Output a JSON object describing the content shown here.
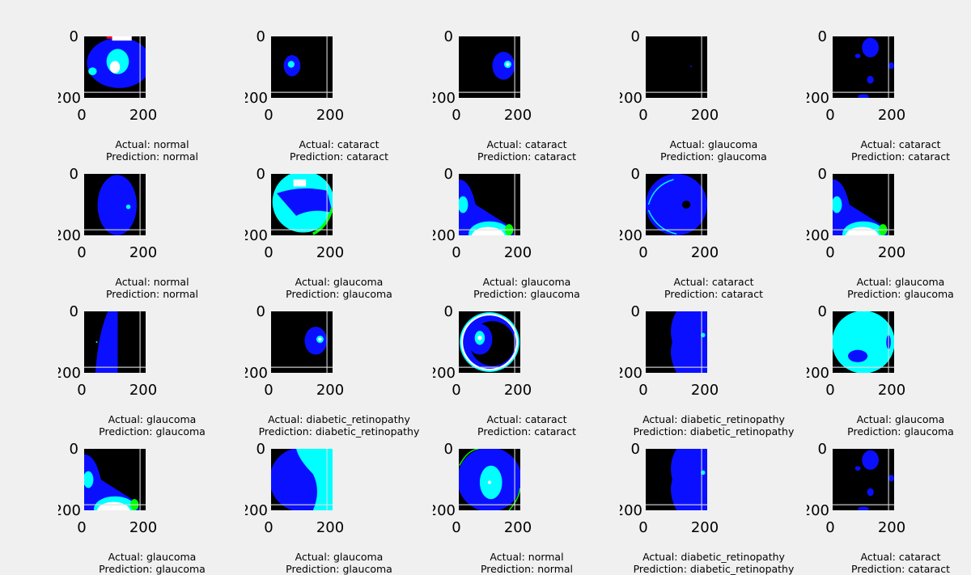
{
  "chart_data": {
    "type": "image-grid",
    "rows": 4,
    "cols": 5,
    "axis": {
      "xticks": [
        "0",
        "200"
      ],
      "yticks": [
        "0",
        "200"
      ]
    },
    "caption_prefixes": {
      "actual": "Actual:",
      "prediction": "Prediction:"
    },
    "panels": [
      {
        "actual": "Actual: normal",
        "prediction": "Prediction: normal",
        "label": "normal",
        "style": "bright-top"
      },
      {
        "actual": "Actual: cataract",
        "prediction": "Prediction: cataract",
        "label": "cataract",
        "style": "small-blob"
      },
      {
        "actual": "Actual: cataract",
        "prediction": "Prediction: cataract",
        "label": "cataract",
        "style": "sparse-right"
      },
      {
        "actual": "Actual: glaucoma",
        "prediction": "Prediction: glaucoma",
        "label": "glaucoma",
        "style": "dark"
      },
      {
        "actual": "Actual: cataract",
        "prediction": "Prediction: cataract",
        "label": "cataract",
        "style": "sparse-dots"
      },
      {
        "actual": "Actual: normal",
        "prediction": "Prediction: normal",
        "label": "normal",
        "style": "blue-oval"
      },
      {
        "actual": "Actual: glaucoma",
        "prediction": "Prediction: glaucoma",
        "label": "glaucoma",
        "style": "cyan-disc"
      },
      {
        "actual": "Actual: glaucoma",
        "prediction": "Prediction: glaucoma",
        "label": "glaucoma",
        "style": "white-bottom"
      },
      {
        "actual": "Actual: cataract",
        "prediction": "Prediction: cataract",
        "label": "cataract",
        "style": "blue-fundus"
      },
      {
        "actual": "Actual: glaucoma",
        "prediction": "Prediction: glaucoma",
        "label": "glaucoma",
        "style": "white-bottom"
      },
      {
        "actual": "Actual: glaucoma",
        "prediction": "Prediction: glaucoma",
        "label": "glaucoma",
        "style": "thin-crescent"
      },
      {
        "actual": "Actual: diabetic_retinopathy",
        "prediction": "Prediction: diabetic_retinopathy",
        "label": "diabetic_retinopathy",
        "style": "sparse-right"
      },
      {
        "actual": "Actual: cataract",
        "prediction": "Prediction: cataract",
        "label": "cataract",
        "style": "ring"
      },
      {
        "actual": "Actual: diabetic_retinopathy",
        "prediction": "Prediction: diabetic_retinopathy",
        "label": "diabetic_retinopathy",
        "style": "half-right"
      },
      {
        "actual": "Actual: glaucoma",
        "prediction": "Prediction: glaucoma",
        "label": "glaucoma",
        "style": "cyan-full"
      },
      {
        "actual": "Actual: glaucoma",
        "prediction": "Prediction: glaucoma",
        "label": "glaucoma",
        "style": "white-bottom"
      },
      {
        "actual": "Actual: glaucoma",
        "prediction": "Prediction: glaucoma",
        "label": "glaucoma",
        "style": "cyan-half"
      },
      {
        "actual": "Actual: normal",
        "prediction": "Prediction: normal",
        "label": "normal",
        "style": "blue-fundus-green"
      },
      {
        "actual": "Actual: diabetic_retinopathy",
        "prediction": "Prediction: diabetic_retinopathy",
        "label": "diabetic_retinopathy",
        "style": "half-right"
      },
      {
        "actual": "Actual: cataract",
        "prediction": "Prediction: cataract",
        "label": "cataract",
        "style": "sparse-dots"
      }
    ]
  },
  "colors": {
    "background": "#f0f0f0",
    "image_bg": "#000000",
    "blue": "#0a10ff",
    "cyan": "#00ffff",
    "white": "#ffffff",
    "green": "#00ff00",
    "red": "#ff0000"
  }
}
